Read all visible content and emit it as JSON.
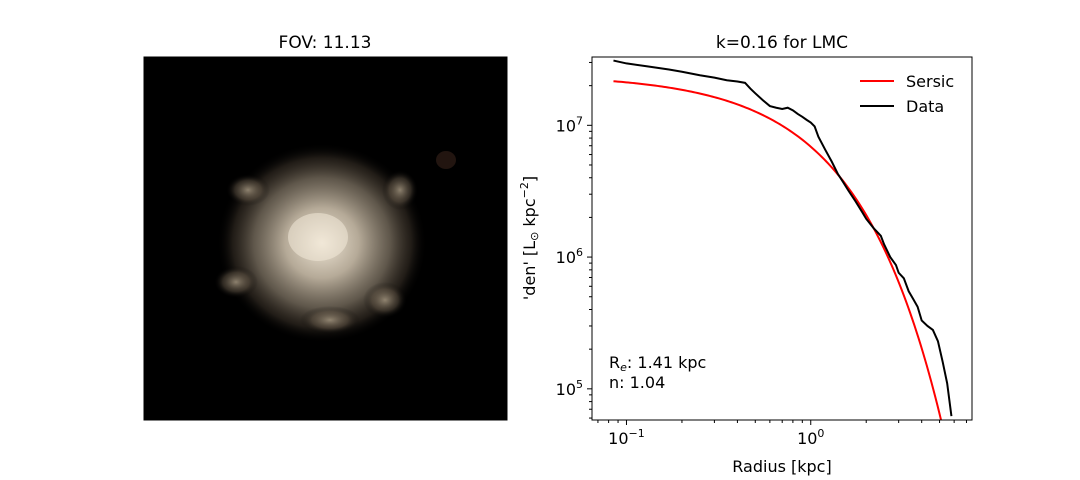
{
  "left_panel": {
    "title": "FOV:  11.13",
    "image_description_icon": "galaxy-image"
  },
  "right_panel": {
    "title": "k=0.16 for LMC",
    "legend": {
      "sersic_label": "Sersic",
      "data_label": "Data"
    },
    "annotation": {
      "re_prefix": "R",
      "re_sub": "e",
      "re_value": ": 1.41 kpc",
      "n_line": "n:  1.04"
    }
  },
  "colors": {
    "sersic": "#ff0000",
    "data": "#000000",
    "background": "#000000"
  },
  "chart_data": [
    {
      "type": "image",
      "title": "FOV:  11.13"
    },
    {
      "type": "line",
      "title": "k=0.16 for LMC",
      "xlabel": "Radius [kpc]",
      "ylabel_parts": [
        "'den' [L",
        "⊙",
        " kpc",
        "−2",
        "]"
      ],
      "x_scale": "log",
      "y_scale": "log",
      "xlim": [
        0.065,
        7.5
      ],
      "ylim": [
        58000,
        33000000
      ],
      "x_ticks": [
        {
          "value": 0.1,
          "base": "10",
          "exp": "−1"
        },
        {
          "value": 1,
          "base": "10",
          "exp": "0"
        }
      ],
      "y_ticks": [
        {
          "value": 100000,
          "base": "10",
          "exp": "5"
        },
        {
          "value": 1000000,
          "base": "10",
          "exp": "6"
        },
        {
          "value": 10000000,
          "base": "10",
          "exp": "7"
        }
      ],
      "legend_position": "top-right",
      "grid": false,
      "series": [
        {
          "name": "Sersic",
          "color": "#ff0000",
          "sersic": {
            "re": 1.41,
            "n": 1.04,
            "ie": 4200000
          },
          "x_range": [
            0.085,
            5.7
          ]
        },
        {
          "name": "Data",
          "color": "#000000",
          "x": [
            0.085,
            0.1,
            0.13,
            0.17,
            0.2,
            0.25,
            0.3,
            0.35,
            0.4,
            0.44,
            0.47,
            0.5,
            0.55,
            0.6,
            0.65,
            0.7,
            0.75,
            0.8,
            0.85,
            0.9,
            0.95,
            1.0,
            1.05,
            1.1,
            1.2,
            1.3,
            1.4,
            1.5,
            1.6,
            1.75,
            1.9,
            2.0,
            2.2,
            2.4,
            2.5,
            2.7,
            2.9,
            3.0,
            3.2,
            3.4,
            3.6,
            3.8,
            4.0,
            4.3,
            4.6,
            4.9,
            5.2,
            5.5,
            5.8
          ],
          "y": [
            31000000,
            29500000,
            28000000,
            26500000,
            25500000,
            24000000,
            23000000,
            22000000,
            21500000,
            21000000,
            19000000,
            17500000,
            15500000,
            14000000,
            13600000,
            13300000,
            13600000,
            13000000,
            12200000,
            11600000,
            11000000,
            10500000,
            9800000,
            8200000,
            6500000,
            5300000,
            4300000,
            3700000,
            3200000,
            2650000,
            2200000,
            1950000,
            1650000,
            1450000,
            1250000,
            1000000,
            870000,
            760000,
            690000,
            550000,
            480000,
            420000,
            330000,
            300000,
            280000,
            230000,
            160000,
            110000,
            62000
          ]
        }
      ]
    }
  ]
}
